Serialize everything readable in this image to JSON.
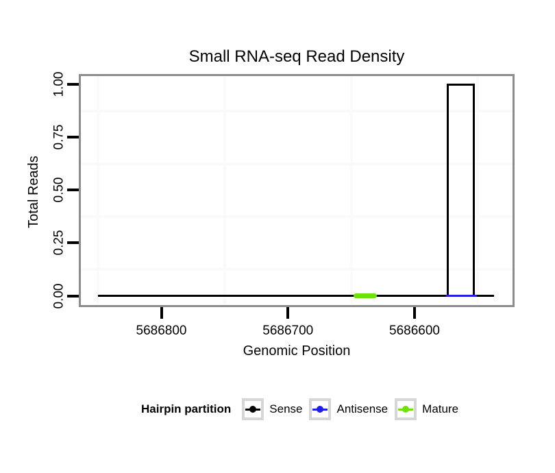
{
  "figure": {
    "title": "Small RNA-seq Read Density"
  },
  "axes": {
    "x": {
      "label": "Genomic Position",
      "ticks": [
        {
          "value": 5686800,
          "label": "5686800"
        },
        {
          "value": 5686700,
          "label": "5686700"
        },
        {
          "value": 5686600,
          "label": "5686600"
        }
      ],
      "minor": [
        5686850,
        5686750,
        5686650,
        5686550
      ],
      "reversed": true
    },
    "y": {
      "label": "Total Reads",
      "ticks": [
        {
          "value": 0,
          "label": "0.00"
        },
        {
          "value": 0.25,
          "label": "0.25"
        },
        {
          "value": 0.5,
          "label": "0.50"
        },
        {
          "value": 0.75,
          "label": "0.75"
        },
        {
          "value": 1,
          "label": "1.00"
        }
      ],
      "minor": [
        0.125,
        0.375,
        0.625,
        0.875
      ]
    }
  },
  "legend": {
    "title": "Hairpin partition",
    "items": [
      {
        "label": "Sense",
        "color": "#000000"
      },
      {
        "label": "Antisense",
        "color": "#1E1EE6"
      },
      {
        "label": "Mature",
        "color": "#6EE00A"
      }
    ]
  },
  "colors": {
    "panel_border": "#8C8C8C",
    "grid_minor": "#FAFAFA",
    "tick": "#000000",
    "legend_key_border": "#D6D6D6"
  },
  "chart_data": {
    "type": "area",
    "title": "Small RNA-seq Read Density",
    "xlabel": "Genomic Position",
    "ylabel": "Total Reads",
    "xlim": [
      5686864,
      5686523
    ],
    "ylim": [
      0,
      1
    ],
    "x_reversed": true,
    "x_ticks": [
      5686800,
      5686700,
      5686600
    ],
    "y_ticks": [
      0,
      0.25,
      0.5,
      0.75,
      1
    ],
    "grid": "minor-only",
    "legend_title": "Hairpin partition",
    "legend_position": "bottom",
    "series": [
      {
        "name": "Sense",
        "color": "#000000",
        "style": "step",
        "linewidth": 3,
        "segments": [
          {
            "from": 5686850,
            "to": 5686574,
            "value": 0
          },
          {
            "from": 5686574,
            "to": 5686553,
            "value": 1
          },
          {
            "from": 5686553,
            "to": 5686537,
            "value": 0
          }
        ]
      },
      {
        "name": "Antisense",
        "color": "#1E1EE6",
        "style": "line",
        "linewidth": 3,
        "segments": [
          {
            "from": 5686575,
            "to": 5686551,
            "value": 0
          }
        ]
      },
      {
        "name": "Mature",
        "color": "#6EE00A",
        "style": "thick-line",
        "linewidth": 7,
        "segments": [
          {
            "from": 5686648,
            "to": 5686630,
            "value": 0
          }
        ]
      }
    ]
  }
}
